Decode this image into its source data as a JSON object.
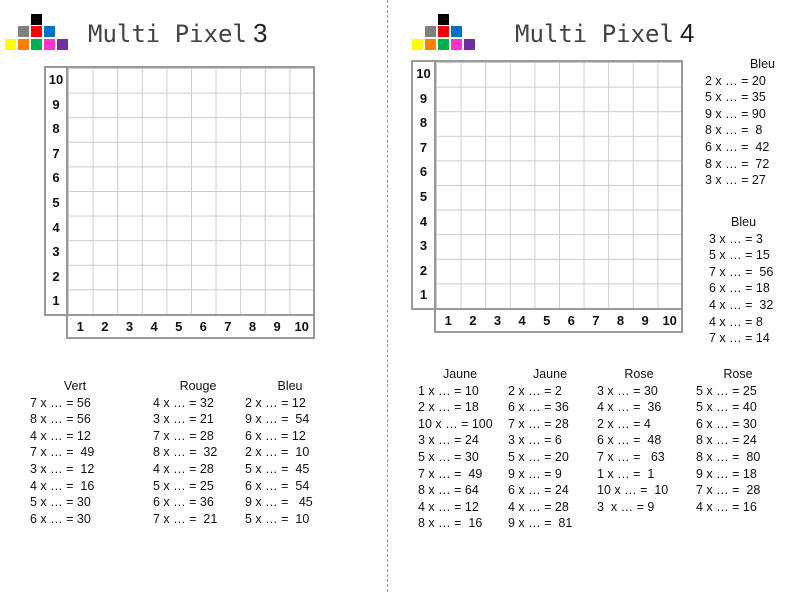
{
  "logo_colors": {
    "black": "#000000",
    "gray": "#808080",
    "red": "#ff0000",
    "blue": "#0070c0",
    "yellow": "#ffff00",
    "orange": "#ff8000",
    "green": "#00b050",
    "pink": "#ff33cc",
    "purple": "#7030a0"
  },
  "sheets": [
    {
      "title_text": "Multi Pixel",
      "title_num": "3",
      "y_labels": [
        "10",
        "9",
        "8",
        "7",
        "6",
        "5",
        "4",
        "3",
        "2",
        "1"
      ],
      "x_labels": [
        "1",
        "2",
        "3",
        "4",
        "5",
        "6",
        "7",
        "8",
        "9",
        "10"
      ],
      "columns": [
        {
          "heading": "Vert",
          "lines": [
            "7 x … = 56",
            "8 x … = 56",
            "4 x … = 12",
            "7 x … =  49",
            "3 x … =  12",
            "4 x … =  16",
            "5 x … = 30",
            "6 x … = 30"
          ]
        },
        {
          "heading": "Rouge",
          "lines": [
            "4 x … = 32",
            "3 x … = 21",
            "7 x … = 28",
            "8 x … =  32",
            "4 x … = 28",
            "5 x … = 25",
            "6 x … = 36",
            "7 x … =  21"
          ]
        },
        {
          "heading": "Bleu",
          "lines": [
            "2 x … = 12",
            "9 x … =  54",
            "6 x … = 12",
            "2 x … =  10",
            "5 x … =  45",
            "6 x … =  54",
            "9 x … =   45",
            "5 x … =  10"
          ]
        }
      ]
    },
    {
      "title_text": "Multi Pixel",
      "title_num": "4",
      "y_labels": [
        "10",
        "9",
        "8",
        "7",
        "6",
        "5",
        "4",
        "3",
        "2",
        "1"
      ],
      "x_labels": [
        "1",
        "2",
        "3",
        "4",
        "5",
        "6",
        "7",
        "8",
        "9",
        "10"
      ],
      "side_columns": [
        {
          "heading": "Bleu",
          "lines": [
            "2 x … = 20",
            "5 x … = 35",
            "9 x … = 90",
            "8 x … =  8",
            "6 x … =  42",
            "8 x … =  72",
            "3 x … = 27"
          ]
        },
        {
          "heading": "Bleu",
          "lines": [
            "3 x … = 3",
            "5 x … = 15",
            "7 x … =  56",
            "6 x … = 18",
            "4 x … =  32",
            "4 x … = 8",
            "7 x … = 14"
          ]
        }
      ],
      "columns": [
        {
          "heading": "Jaune",
          "lines": [
            "1 x … = 10",
            "2 x … = 18",
            "10 x … = 100",
            "3 x … = 24",
            "5 x … = 30",
            "7 x … =  49",
            "8 x … = 64",
            "4 x … = 12",
            "8 x … =  16"
          ]
        },
        {
          "heading": "Jaune",
          "lines": [
            "2 x … = 2",
            "6 x … = 36",
            "7 x … = 28",
            "3 x … = 6",
            "5 x … = 20",
            "9 x … = 9",
            "6 x … = 24",
            "4 x … = 28",
            "9 x … =  81"
          ]
        },
        {
          "heading": "Rose",
          "lines": [
            "3 x … = 30",
            "4 x … =  36",
            "2 x … = 4",
            "6 x … =  48",
            "7 x … =   63",
            "1 x … =  1",
            "10 x … =  10",
            "3  x … = 9"
          ]
        },
        {
          "heading": "Rose",
          "lines": [
            "5 x … = 25",
            "5 x … = 40",
            "6 x … = 30",
            "8 x … = 24",
            "8 x … =  80",
            "9 x … = 18",
            "7 x … =  28",
            "4 x … = 16"
          ]
        }
      ]
    }
  ]
}
